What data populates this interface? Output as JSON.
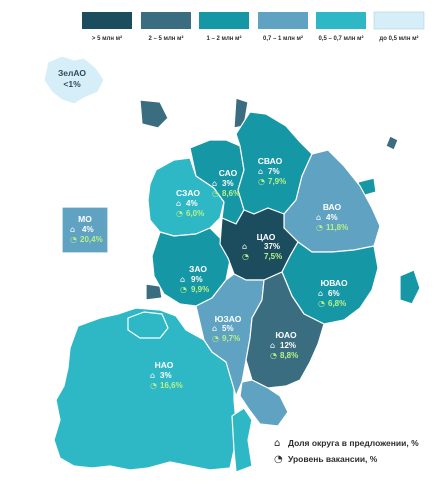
{
  "legend": {
    "items": [
      {
        "label": "> 5 млн м²",
        "color": "#1c4d5e"
      },
      {
        "label": "2 – 5 млн м²",
        "color": "#3a6d80"
      },
      {
        "label": "1 – 2 млн м²",
        "color": "#1697a6"
      },
      {
        "label": "0,7 – 1 млн м²",
        "color": "#5fa2c2"
      },
      {
        "label": "0,5 – 0,7 млн м²",
        "color": "#2eb8c6"
      },
      {
        "label": "до 0,5 млн м²",
        "color": "#d6eef7"
      }
    ]
  },
  "footer": {
    "share_label": "Доля округа в предложении, %",
    "vacancy_label": "Уровень вакансии, %"
  },
  "icons": {
    "share": "house-icon",
    "vacancy": "pie-icon"
  },
  "zelao": {
    "name": "ЗелАО",
    "value": "<1%"
  },
  "districts": [
    {
      "id": "cao",
      "name": "ЦАО",
      "share": "37%",
      "vacancy": "7,5%",
      "color": "#1c4d5e"
    },
    {
      "id": "sao",
      "name": "САО",
      "share": "3%",
      "vacancy": "8,6%",
      "color": "#1697a6"
    },
    {
      "id": "svao",
      "name": "СВАО",
      "share": "7%",
      "vacancy": "7,9%",
      "color": "#1697a6"
    },
    {
      "id": "vao",
      "name": "ВАО",
      "share": "4%",
      "vacancy": "11,8%",
      "color": "#5fa2c2"
    },
    {
      "id": "uvao",
      "name": "ЮВАО",
      "share": "6%",
      "vacancy": "6,8%",
      "color": "#1697a6"
    },
    {
      "id": "uao",
      "name": "ЮАО",
      "share": "12%",
      "vacancy": "8,8%",
      "color": "#3a6d80"
    },
    {
      "id": "uzao",
      "name": "ЮЗАО",
      "share": "5%",
      "vacancy": "9,7%",
      "color": "#5fa2c2"
    },
    {
      "id": "zao",
      "name": "ЗАО",
      "share": "9%",
      "vacancy": "9,9%",
      "color": "#1697a6"
    },
    {
      "id": "szao",
      "name": "СЗАО",
      "share": "4%",
      "vacancy": "6,0%",
      "color": "#2eb8c6"
    },
    {
      "id": "mo",
      "name": "МО",
      "share": "4%",
      "vacancy": "20,4%",
      "color": "#5fa2c2"
    },
    {
      "id": "nao",
      "name": "НАО",
      "share": "3%",
      "vacancy": "16,6%",
      "color": "#2eb8c6"
    }
  ]
}
